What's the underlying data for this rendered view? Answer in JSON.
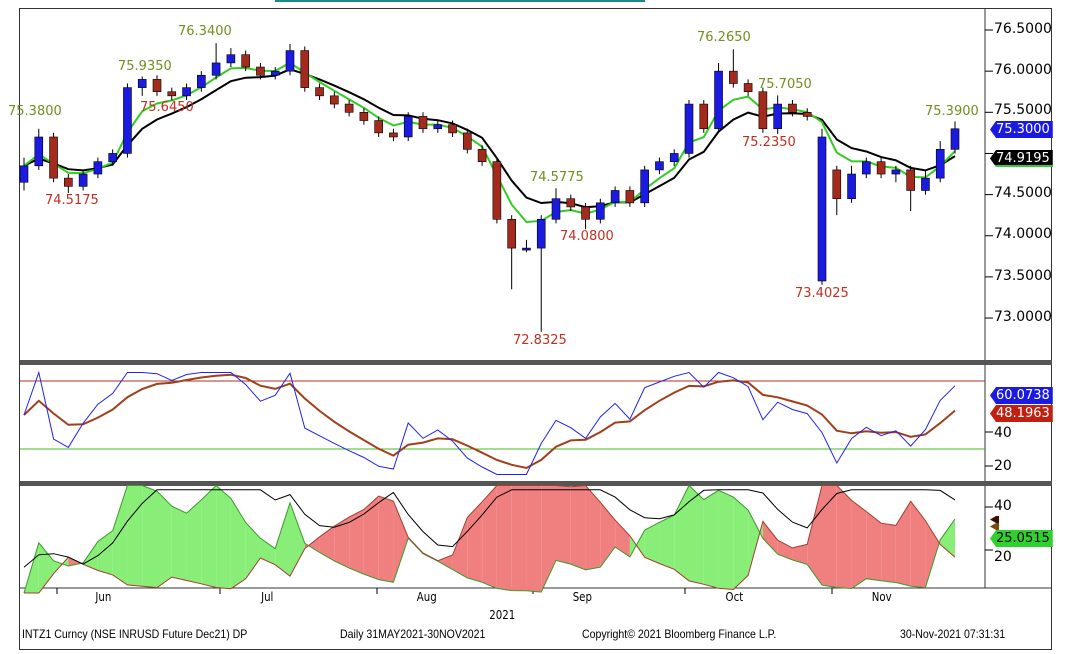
{
  "chart_data": [
    {
      "type": "candlestick",
      "panel": "price",
      "ylim": [
        72.6,
        76.7
      ],
      "yticks": [
        "76.5000",
        "76.0000",
        "75.5000",
        "75.0000",
        "74.5000",
        "74.0000",
        "73.5000",
        "73.0000"
      ],
      "candles_ohlc": [
        [
          74.65,
          74.95,
          74.55,
          74.85
        ],
        [
          74.85,
          75.3,
          74.8,
          75.2
        ],
        [
          75.2,
          75.25,
          74.65,
          74.7
        ],
        [
          74.7,
          74.75,
          74.52,
          74.6
        ],
        [
          74.6,
          74.8,
          74.55,
          74.75
        ],
        [
          74.75,
          74.95,
          74.7,
          74.9
        ],
        [
          74.9,
          75.05,
          74.85,
          75.0
        ],
        [
          75.0,
          75.85,
          74.95,
          75.8
        ],
        [
          75.8,
          75.935,
          75.7,
          75.9
        ],
        [
          75.9,
          75.95,
          75.7,
          75.75
        ],
        [
          75.75,
          75.8,
          75.645,
          75.7
        ],
        [
          75.7,
          75.85,
          75.65,
          75.8
        ],
        [
          75.8,
          76.0,
          75.75,
          75.95
        ],
        [
          75.95,
          76.34,
          75.9,
          76.1
        ],
        [
          76.1,
          76.28,
          76.05,
          76.2
        ],
        [
          76.2,
          76.25,
          76.0,
          76.05
        ],
        [
          76.05,
          76.1,
          75.9,
          75.95
        ],
        [
          75.95,
          76.05,
          75.9,
          76.0
        ],
        [
          76.0,
          76.33,
          75.95,
          76.25
        ],
        [
          76.25,
          76.3,
          75.75,
          75.8
        ],
        [
          75.8,
          75.85,
          75.65,
          75.7
        ],
        [
          75.7,
          75.75,
          75.55,
          75.6
        ],
        [
          75.6,
          75.65,
          75.45,
          75.5
        ],
        [
          75.5,
          75.55,
          75.35,
          75.4
        ],
        [
          75.4,
          75.45,
          75.2,
          75.25
        ],
        [
          75.25,
          75.3,
          75.15,
          75.2
        ],
        [
          75.2,
          75.5,
          75.15,
          75.45
        ],
        [
          75.45,
          75.5,
          75.25,
          75.3
        ],
        [
          75.3,
          75.4,
          75.25,
          75.35
        ],
        [
          75.35,
          75.4,
          75.2,
          75.25
        ],
        [
          75.25,
          75.3,
          75.0,
          75.05
        ],
        [
          75.05,
          75.1,
          74.85,
          74.9
        ],
        [
          74.9,
          74.95,
          74.15,
          74.2
        ],
        [
          74.2,
          74.25,
          73.35,
          73.85
        ],
        [
          73.85,
          73.95,
          73.8,
          73.85
        ],
        [
          73.85,
          74.25,
          72.8325,
          74.2
        ],
        [
          74.2,
          74.5775,
          74.15,
          74.45
        ],
        [
          74.45,
          74.5,
          74.3,
          74.35
        ],
        [
          74.35,
          74.4,
          74.08,
          74.2
        ],
        [
          74.2,
          74.45,
          74.15,
          74.4
        ],
        [
          74.4,
          74.6,
          74.35,
          74.55
        ],
        [
          74.55,
          74.6,
          74.35,
          74.4
        ],
        [
          74.4,
          74.85,
          74.35,
          74.8
        ],
        [
          74.8,
          74.95,
          74.75,
          74.9
        ],
        [
          74.9,
          75.05,
          74.85,
          75.0
        ],
        [
          75.0,
          75.65,
          74.95,
          75.6
        ],
        [
          75.6,
          75.65,
          75.25,
          75.3
        ],
        [
          75.3,
          76.1,
          75.25,
          76.0
        ],
        [
          76.0,
          76.265,
          75.8,
          75.85
        ],
        [
          75.85,
          75.9,
          75.7,
          75.75
        ],
        [
          75.75,
          75.8,
          75.25,
          75.3
        ],
        [
          75.3,
          75.705,
          75.235,
          75.6
        ],
        [
          75.6,
          75.65,
          75.45,
          75.5
        ],
        [
          75.5,
          75.55,
          75.4,
          75.45
        ],
        [
          73.45,
          75.3,
          73.4025,
          75.2
        ],
        [
          74.8,
          74.85,
          74.25,
          74.45
        ],
        [
          74.45,
          74.85,
          74.4,
          74.75
        ],
        [
          74.75,
          74.95,
          74.7,
          74.9
        ],
        [
          74.9,
          74.95,
          74.7,
          74.75
        ],
        [
          74.75,
          74.85,
          74.65,
          74.8
        ],
        [
          74.8,
          74.85,
          74.3,
          74.55
        ],
        [
          74.55,
          74.8,
          74.5,
          74.7
        ],
        [
          74.7,
          75.15,
          74.65,
          75.05
        ],
        [
          75.05,
          75.39,
          75.0,
          75.3
        ]
      ],
      "annotations": {
        "a1": "76.3400",
        "a2": "75.9350",
        "a3": "75.6450",
        "a4": "75.3800",
        "a5": "74.5175",
        "a6": "74.5775",
        "a7": "74.0800",
        "a8": "72.8325",
        "a9": "76.2650",
        "a10": "75.7050",
        "a11": "75.2350",
        "a12": "73.4025",
        "a13": "75.3900"
      },
      "last_price": "75.3000",
      "moving_average_last": "74.9195",
      "colors": {
        "up": "#1a1ae0",
        "down": "#a32a1c",
        "ma_fast": "#33cc22",
        "ma_slow": "#000000"
      }
    },
    {
      "type": "line",
      "panel": "rsi",
      "ylim": [
        10,
        80
      ],
      "yticks": [
        "40",
        "20"
      ],
      "levels": [
        70,
        30
      ],
      "last_values": [
        "60.0738",
        "48.1963"
      ],
      "colors": {
        "rsi": "#2222ee",
        "rsi_ma": "#a0401a",
        "upper": "#b03020",
        "lower": "#44bb22"
      }
    },
    {
      "type": "area",
      "panel": "dmi",
      "ylim": [
        10,
        55
      ],
      "yticks": [
        "40",
        "20"
      ],
      "last_values": [
        "25.0515"
      ],
      "colors": {
        "plus_fill": "#88ee77",
        "minus_fill": "#f08080",
        "adx": "#000000"
      }
    }
  ],
  "xaxis": {
    "months": [
      "Jun",
      "Jul",
      "Aug",
      "Sep",
      "Oct",
      "Nov"
    ],
    "year": "2021"
  },
  "footer": {
    "security": "INTZ1 Curncy (NSE INRUSD Future Dec21) DP",
    "range": "Daily 31MAY2021-30NOV2021",
    "copyright": "Copyright© 2021 Bloomberg Finance L.P.",
    "timestamp": "30-Nov-2021 07:31:31"
  }
}
